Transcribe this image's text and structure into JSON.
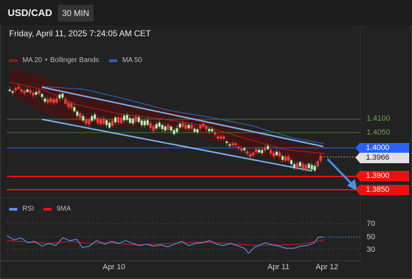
{
  "header": {
    "symbol": "USD/CAD",
    "timeframe": "30 MIN",
    "datetime": "Friday, April 11, 2025 7:24:05 AM CET"
  },
  "main_legend": [
    {
      "label": "MA 20 + Bollinger Bands",
      "color": "#8b1a1a"
    },
    {
      "label": "MA 50",
      "color": "#2f5fa8"
    }
  ],
  "levels": {
    "l1": {
      "label": "1.4100",
      "color": "#6aa84f"
    },
    "l2": {
      "label": "1.4050",
      "color": "#6aa84f"
    },
    "l3": {
      "label": "1.4000",
      "color": "#2962ff"
    },
    "current": {
      "label": "1.3966",
      "color": "#e0e0e0"
    },
    "l4": {
      "label": "1.3900",
      "color": "#ee1111"
    },
    "l5": {
      "label": "1.3850",
      "color": "#ee1111"
    }
  },
  "rsi_legend": [
    {
      "label": "RSI",
      "color": "#5b8fe8"
    },
    {
      "label": "9MA",
      "color": "#ee1111"
    }
  ],
  "rsi_levels": [
    "70",
    "50",
    "30"
  ],
  "x_ticks": [
    "Apr 10",
    "Apr 11",
    "Apr 12"
  ],
  "colors": {
    "up": "#4caf50",
    "down": "#ef3b3b",
    "trend": "#7fb3f5",
    "band": "#5a1212"
  }
}
